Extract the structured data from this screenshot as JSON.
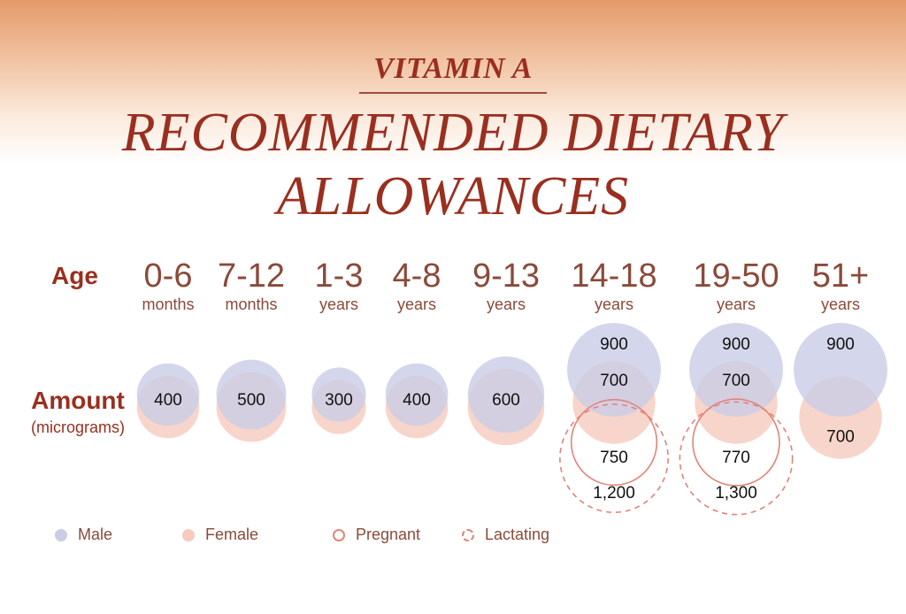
{
  "header": {
    "label": "VITAMIN A",
    "title_line1": "RECOMMENDED DIETARY",
    "title_line2": "ALLOWANCES"
  },
  "row_labels": {
    "age": "Age",
    "amount": "Amount",
    "amount_unit": "(micrograms)"
  },
  "legend": {
    "male": "Male",
    "female": "Female",
    "pregnant": "Pregnant",
    "lactating": "Lactating"
  },
  "colors": {
    "male": "#c9cde6",
    "female": "#f6cabd",
    "pregnant_lactating": "#e0847a",
    "title": "#9a2f1f",
    "text": "#8a4a3a"
  },
  "chart_data": {
    "type": "bubble",
    "title": "RECOMMENDED DIETARY ALLOWANCES",
    "unit": "micrograms",
    "age_groups": [
      {
        "range": "0-6",
        "unit": "months"
      },
      {
        "range": "7-12",
        "unit": "months"
      },
      {
        "range": "1-3",
        "unit": "years"
      },
      {
        "range": "4-8",
        "unit": "years"
      },
      {
        "range": "9-13",
        "unit": "years"
      },
      {
        "range": "14-18",
        "unit": "years"
      },
      {
        "range": "19-50",
        "unit": "years"
      },
      {
        "range": "51+",
        "unit": "years"
      }
    ],
    "series": [
      {
        "name": "Male",
        "values": [
          400,
          500,
          300,
          400,
          600,
          900,
          900,
          900
        ],
        "labels": [
          "400",
          "500",
          "300",
          "400",
          "600",
          "900",
          "900",
          "900"
        ]
      },
      {
        "name": "Female",
        "values": [
          400,
          500,
          300,
          400,
          600,
          700,
          700,
          700
        ],
        "labels": [
          "",
          "",
          "",
          "",
          "",
          "700",
          "700",
          "700"
        ]
      },
      {
        "name": "Pregnant",
        "values": [
          null,
          null,
          null,
          null,
          null,
          750,
          770,
          null
        ],
        "labels": [
          "",
          "",
          "",
          "",
          "",
          "750",
          "770",
          ""
        ]
      },
      {
        "name": "Lactating",
        "values": [
          null,
          null,
          null,
          null,
          null,
          1200,
          1300,
          null
        ],
        "labels": [
          "",
          "",
          "",
          "",
          "",
          "1,200",
          "1,300",
          ""
        ]
      }
    ]
  }
}
